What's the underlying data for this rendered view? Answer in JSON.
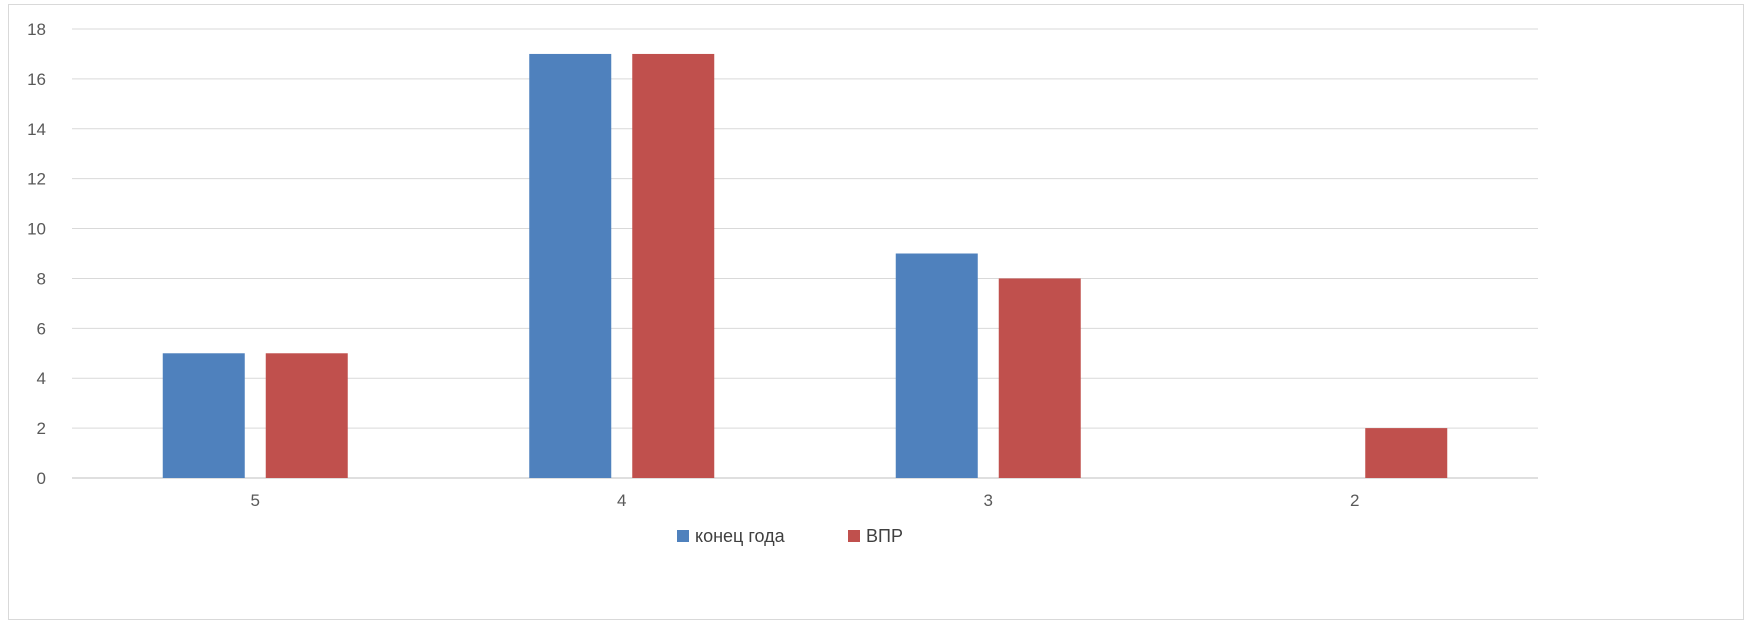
{
  "chart_data": {
    "type": "bar",
    "categories": [
      "5",
      "4",
      "3",
      "2"
    ],
    "series": [
      {
        "name": "конец года",
        "values": [
          5,
          17,
          9,
          null
        ],
        "color": "#4f81bd"
      },
      {
        "name": "ВПР",
        "values": [
          5,
          17,
          8,
          2
        ],
        "color": "#c0504d"
      }
    ],
    "title": "",
    "xlabel": "",
    "ylabel": "",
    "ylim": [
      0,
      18
    ],
    "yticks": [
      0,
      2,
      4,
      6,
      8,
      10,
      12,
      14,
      16,
      18
    ],
    "grid": true,
    "legend_position": "bottom"
  }
}
